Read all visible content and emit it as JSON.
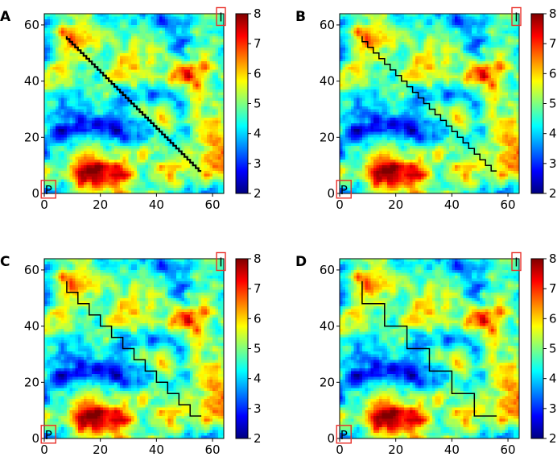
{
  "colormap": [
    "#00007f",
    "#0000ff",
    "#007fff",
    "#00ffff",
    "#7fff7f",
    "#ffff00",
    "#ff7f00",
    "#ff0000",
    "#7f0000"
  ],
  "marker_color": "#e8302a",
  "chart_data": [
    {
      "panel": "A",
      "type": "heatmap",
      "path_style": "fine staircase",
      "step": 1,
      "xlim": [
        0,
        64
      ],
      "ylim": [
        0,
        64
      ],
      "x_ticks": [
        "0",
        "20",
        "40",
        "60"
      ],
      "y_ticks": [
        "0",
        "20",
        "40",
        "60"
      ],
      "colorbar": {
        "range": [
          2,
          8
        ],
        "ticks": [
          "2",
          "3",
          "4",
          "5",
          "6",
          "7",
          "8"
        ]
      },
      "markers": [
        {
          "text": "P",
          "x": 1.5,
          "y": 1.5
        },
        {
          "text": "I",
          "x": 63,
          "y": 63
        }
      ],
      "path": {
        "start": [
          8,
          56
        ],
        "end": [
          56,
          8
        ]
      }
    },
    {
      "panel": "B",
      "type": "heatmap",
      "path_style": "staircase",
      "step": 2,
      "xlim": [
        0,
        64
      ],
      "ylim": [
        0,
        64
      ],
      "x_ticks": [
        "0",
        "20",
        "40",
        "60"
      ],
      "y_ticks": [
        "0",
        "20",
        "40",
        "60"
      ],
      "colorbar": {
        "range": [
          2,
          8
        ],
        "ticks": [
          "2",
          "3",
          "4",
          "5",
          "6",
          "7",
          "8"
        ]
      },
      "markers": [
        {
          "text": "P",
          "x": 1.5,
          "y": 1.5
        },
        {
          "text": "I",
          "x": 63,
          "y": 63
        }
      ],
      "path": {
        "start": [
          8,
          56
        ],
        "end": [
          56,
          8
        ]
      }
    },
    {
      "panel": "C",
      "type": "heatmap",
      "path_style": "staircase",
      "step": 4,
      "xlim": [
        0,
        64
      ],
      "ylim": [
        0,
        64
      ],
      "x_ticks": [
        "0",
        "20",
        "40",
        "60"
      ],
      "y_ticks": [
        "0",
        "20",
        "40",
        "60"
      ],
      "colorbar": {
        "range": [
          2,
          8
        ],
        "ticks": [
          "2",
          "3",
          "4",
          "5",
          "6",
          "7",
          "8"
        ]
      },
      "markers": [
        {
          "text": "P",
          "x": 1.5,
          "y": 1.5
        },
        {
          "text": "I",
          "x": 63,
          "y": 63
        }
      ],
      "path": {
        "start": [
          8,
          56
        ],
        "end": [
          56,
          8
        ]
      }
    },
    {
      "panel": "D",
      "type": "heatmap",
      "path_style": "staircase",
      "step": 8,
      "xlim": [
        0,
        64
      ],
      "ylim": [
        0,
        64
      ],
      "x_ticks": [
        "0",
        "20",
        "40",
        "60"
      ],
      "y_ticks": [
        "0",
        "20",
        "40",
        "60"
      ],
      "colorbar": {
        "range": [
          2,
          8
        ],
        "ticks": [
          "2",
          "3",
          "4",
          "5",
          "6",
          "7",
          "8"
        ]
      },
      "markers": [
        {
          "text": "P",
          "x": 1.5,
          "y": 1.5
        },
        {
          "text": "I",
          "x": 63,
          "y": 63
        }
      ],
      "path": {
        "start": [
          8,
          56
        ],
        "end": [
          56,
          8
        ]
      }
    }
  ]
}
